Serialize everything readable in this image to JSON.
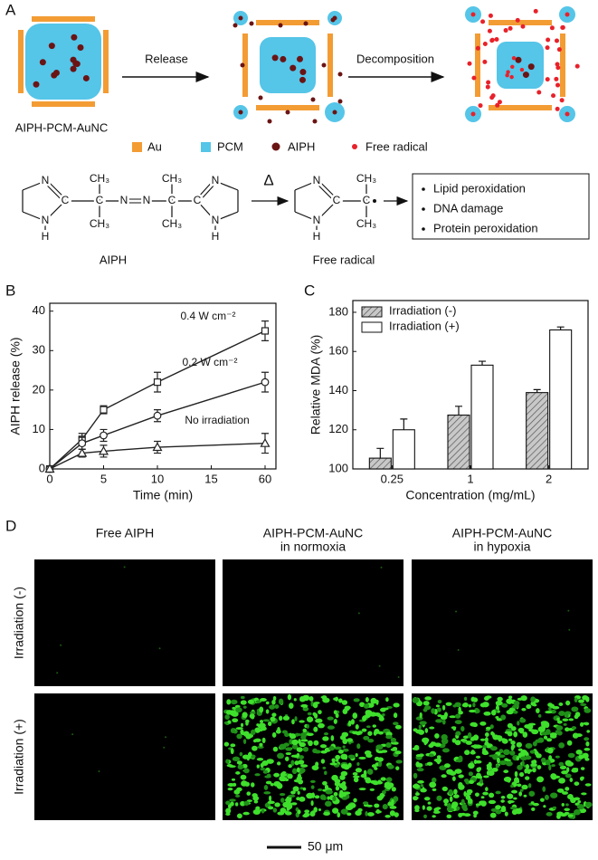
{
  "panel_labels": [
    "A",
    "B",
    "C",
    "D"
  ],
  "schematic": {
    "steps": [
      "Release",
      "Decomposition"
    ],
    "nanocage_label": "AIPH-PCM-AuNC",
    "legend": [
      "Au",
      "PCM",
      "AIPH",
      "Free radical"
    ],
    "aiph_structure": {
      "atoms": [
        "N",
        "C",
        "N",
        "H",
        "C",
        "CH₃",
        "CH₃",
        "N",
        "N",
        "C",
        "CH₃",
        "CH₃",
        "C",
        "N",
        "N",
        "H"
      ],
      "name": "AIPH"
    },
    "heat_symbol": "Δ",
    "radical_structure": {
      "atoms": [
        "N",
        "C",
        "N",
        "H",
        "C",
        "CH₃",
        "CH₃"
      ],
      "name": "Free radical"
    },
    "effects": [
      "Lipid peroxidation",
      "DNA damage",
      "Protein peroxidation"
    ]
  },
  "chart_data": [
    {
      "type": "line",
      "x_label": "Time (min)",
      "y_label": "AIPH release (%)",
      "x": [
        0,
        3,
        5,
        10,
        60
      ],
      "xlim": [
        0,
        60
      ],
      "xticks": [
        0,
        5,
        10,
        15,
        60
      ],
      "ylim": [
        0,
        42
      ],
      "yticks": [
        0,
        10,
        20,
        30,
        40
      ],
      "series": [
        {
          "name": "0.4 W cm⁻²",
          "marker": "square",
          "color": "#222222",
          "values": [
            0,
            7.5,
            15,
            22,
            35
          ],
          "errors": [
            null,
            1.5,
            1,
            2.5,
            2.5
          ]
        },
        {
          "name": "0.2 W cm⁻²",
          "marker": "circle",
          "color": "#222222",
          "values": [
            0,
            6.5,
            8.5,
            13.5,
            22
          ],
          "errors": [
            null,
            1.5,
            1.5,
            1.5,
            2.5
          ]
        },
        {
          "name": "No irradiation",
          "marker": "triangle",
          "color": "#222222",
          "values": [
            0,
            4,
            4.5,
            5.5,
            6.5
          ],
          "errors": [
            null,
            1,
            1.5,
            1.5,
            2.5
          ]
        }
      ]
    },
    {
      "type": "bar",
      "x_label": "Concentration (mg/mL)",
      "y_label": "Relative MDA (%)",
      "categories": [
        "0.25",
        "1",
        "2"
      ],
      "ylim": [
        100,
        186
      ],
      "yticks": [
        100,
        120,
        140,
        160,
        180
      ],
      "legend": "upper left",
      "series": [
        {
          "name": "Irradiation (-)",
          "color": "#9a9a9a",
          "hatch": true,
          "values": [
            105.5,
            127.5,
            139
          ],
          "errors": [
            5,
            4.5,
            1.5
          ]
        },
        {
          "name": "Irradiation (+)",
          "color": "#ffffff",
          "hatch": false,
          "values": [
            120,
            153,
            171
          ],
          "errors": [
            5.5,
            2,
            1.5
          ]
        }
      ]
    }
  ],
  "micrographs": {
    "columns": [
      [
        "Free AIPH"
      ],
      [
        "AIPH-PCM-AuNC",
        "in normoxia"
      ],
      [
        "AIPH-PCM-AuNC",
        "in hypoxia"
      ]
    ],
    "rows": [
      "Irradiation (-)",
      "Irradiation (+)"
    ],
    "scale_bar": "50 μm"
  }
}
